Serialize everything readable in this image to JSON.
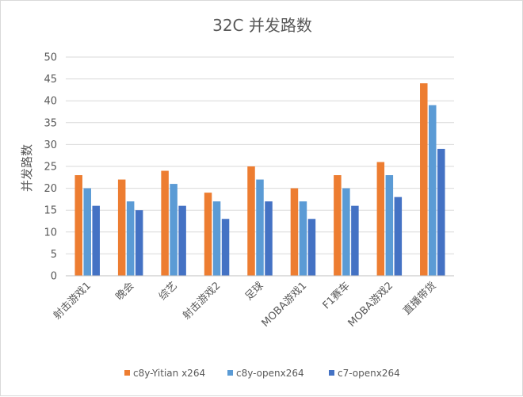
{
  "chart_data": {
    "type": "bar",
    "title": "32C 并发路数",
    "ylabel": "并发路数",
    "xlabel": "",
    "ylim": [
      0,
      50
    ],
    "yticks": [
      0,
      5,
      10,
      15,
      20,
      25,
      30,
      35,
      40,
      45,
      50
    ],
    "grid": true,
    "legend_position": "bottom",
    "categories": [
      "射击游戏1",
      "晚会",
      "综艺",
      "射击游戏2",
      "足球",
      "MOBA游戏1",
      "F1赛车",
      "MOBA游戏2",
      "直播带货"
    ],
    "series": [
      {
        "name": "c8y-Yitian x264",
        "color": "#ED7D31",
        "values": [
          23,
          22,
          24,
          19,
          25,
          20,
          23,
          26,
          44
        ]
      },
      {
        "name": "c8y-openx264",
        "color": "#5B9BD5",
        "values": [
          20,
          17,
          21,
          17,
          22,
          17,
          20,
          23,
          39
        ]
      },
      {
        "name": "c7-openx264",
        "color": "#4472C4",
        "values": [
          16,
          15,
          16,
          13,
          17,
          13,
          16,
          18,
          29
        ]
      }
    ]
  }
}
